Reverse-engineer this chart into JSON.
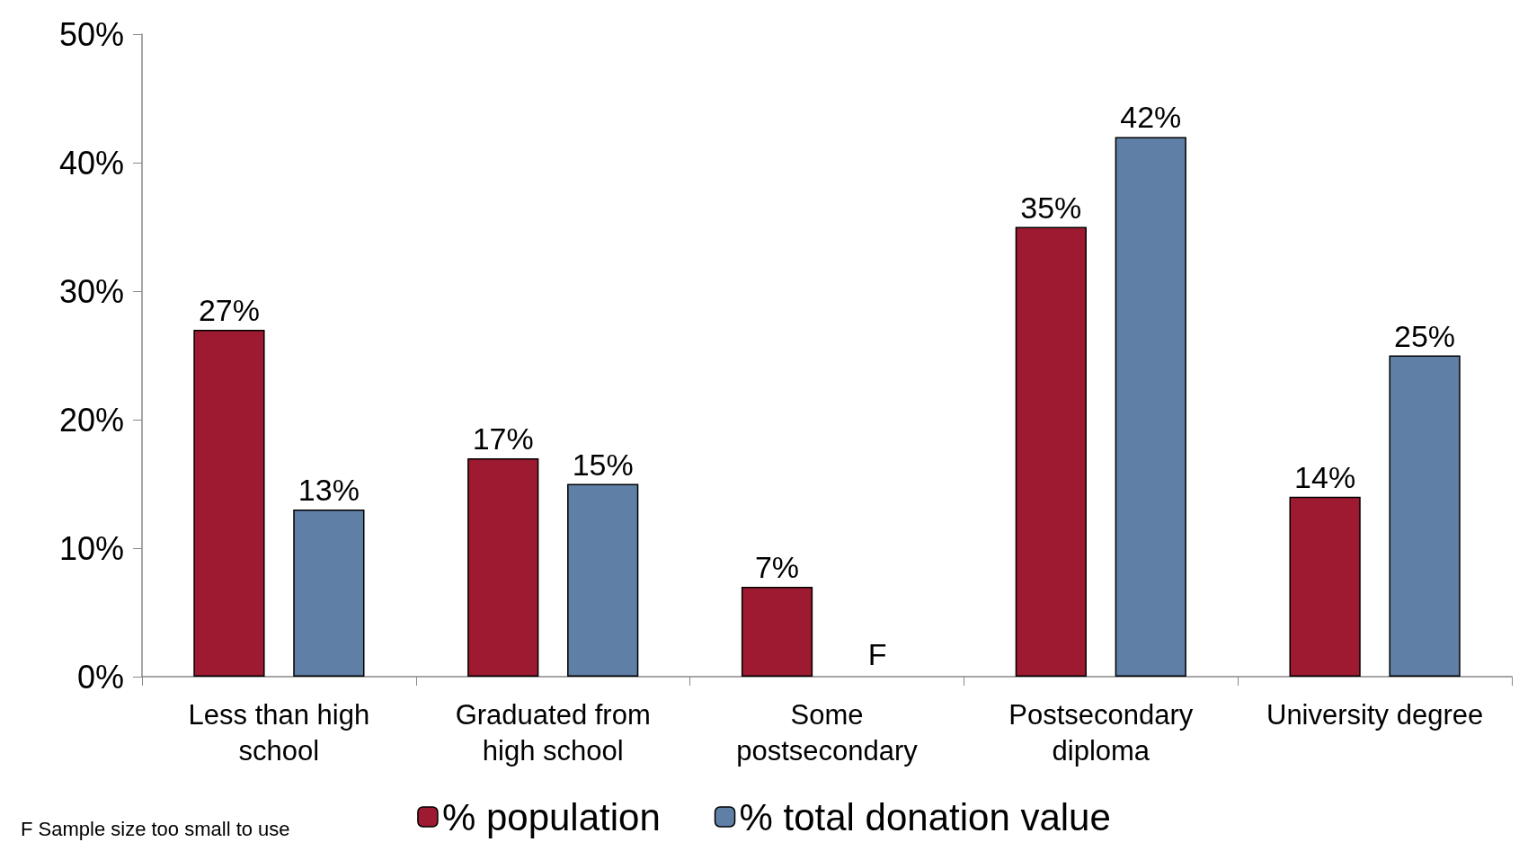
{
  "chart_data": {
    "type": "bar",
    "categories": [
      "Less than high\nschool",
      "Graduated from\nhigh school",
      "Some\npostsecondary",
      "Postsecondary\ndiploma",
      "University degree"
    ],
    "series": [
      {
        "name": "% population",
        "color": "#9e1a30",
        "values": [
          27,
          17,
          7,
          35,
          14
        ],
        "value_labels": [
          "27%",
          "17%",
          "7%",
          "35%",
          "14%"
        ]
      },
      {
        "name": "% total donation value",
        "color": "#5f7fa6",
        "values": [
          13,
          15,
          null,
          42,
          25
        ],
        "value_labels": [
          "13%",
          "15%",
          "F",
          "42%",
          "25%"
        ]
      }
    ],
    "ylim": [
      0,
      50
    ],
    "yticks": [
      {
        "value": 0,
        "label": "0%"
      },
      {
        "value": 10,
        "label": "10%"
      },
      {
        "value": 20,
        "label": "20%"
      },
      {
        "value": 30,
        "label": "30%"
      },
      {
        "value": 40,
        "label": "40%"
      },
      {
        "value": 50,
        "label": "50%"
      }
    ],
    "grid": false,
    "legend": "bottom",
    "annotations": [
      "F Sample size too small to use"
    ]
  }
}
